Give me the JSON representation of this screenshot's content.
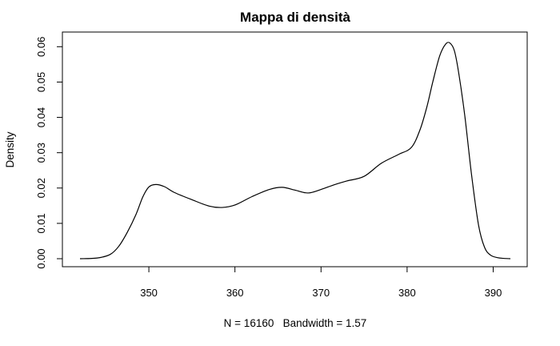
{
  "chart_data": {
    "type": "line",
    "title": "Mappa di densità",
    "xlabel": "N = 16160   Bandwidth = 1.57",
    "ylabel": "Density",
    "xlim": [
      342,
      392
    ],
    "ylim": [
      0,
      0.062
    ],
    "x_ticks": [
      350,
      360,
      370,
      380,
      390
    ],
    "x_tick_labels": [
      "350",
      "360",
      "370",
      "380",
      "390"
    ],
    "y_ticks": [
      0,
      0.01,
      0.02,
      0.03,
      0.04,
      0.05,
      0.06
    ],
    "y_tick_labels": [
      "0.00",
      "0.01",
      "0.02",
      "0.03",
      "0.04",
      "0.05",
      "0.06"
    ],
    "grid": false,
    "series": [
      {
        "x": [
          342.0,
          344.0,
          345.5,
          346.5,
          347.5,
          348.5,
          349.3,
          350.0,
          350.8,
          351.8,
          353.0,
          355.0,
          357.0,
          358.5,
          360.0,
          362.0,
          364.0,
          365.5,
          367.0,
          368.5,
          370.0,
          371.5,
          373.0,
          375.0,
          377.0,
          379.0,
          380.5,
          381.5,
          382.3,
          383.0,
          383.8,
          384.5,
          385.0,
          385.5,
          386.0,
          386.7,
          387.5,
          388.3,
          389.0,
          389.7,
          390.5,
          391.2,
          392.0
        ],
        "y": [
          0.0,
          0.0002,
          0.0012,
          0.0035,
          0.0075,
          0.0125,
          0.0175,
          0.0203,
          0.021,
          0.0204,
          0.0187,
          0.0167,
          0.0149,
          0.0145,
          0.0152,
          0.0176,
          0.0196,
          0.0202,
          0.0194,
          0.0186,
          0.0196,
          0.0209,
          0.022,
          0.0233,
          0.027,
          0.0295,
          0.0315,
          0.0365,
          0.043,
          0.0502,
          0.0575,
          0.0608,
          0.061,
          0.0588,
          0.0525,
          0.0405,
          0.0235,
          0.0095,
          0.0032,
          0.001,
          0.0003,
          0.0001,
          0.0
        ]
      }
    ]
  }
}
